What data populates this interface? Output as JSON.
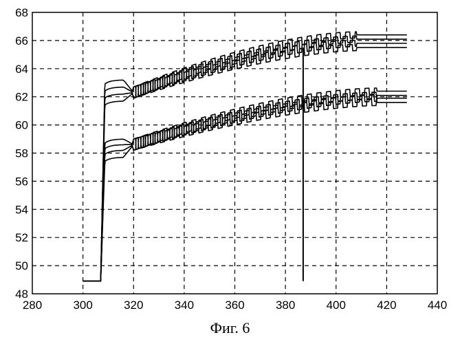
{
  "figure": {
    "caption": "Фиг. 6"
  },
  "chart_data": {
    "type": "line",
    "title": "",
    "xlabel": "",
    "ylabel": "",
    "xlim": [
      280,
      440
    ],
    "ylim": [
      48,
      68
    ],
    "xticks": [
      280,
      300,
      320,
      340,
      360,
      380,
      400,
      420,
      440
    ],
    "yticks": [
      48,
      50,
      52,
      54,
      56,
      58,
      60,
      62,
      64,
      66,
      68
    ],
    "grid": true,
    "legend": "none",
    "line_color": "#000000",
    "step": {
      "x_start": 300,
      "x_step": 307,
      "y_base": 48.9,
      "x_end": 428
    },
    "upper_group": {
      "plateau_y": [
        63.2,
        62.7,
        62.2,
        61.7
      ],
      "ramp_x_start": 320,
      "ramp_y_start": 62.3,
      "final_y": [
        66.4,
        66.1,
        65.8,
        65.5
      ],
      "oscillation_amplitude": 0.8,
      "oscillation_period": 3.8,
      "osc_end_x": 408
    },
    "lower_group": {
      "plateau_y": [
        59.0,
        58.6,
        58.2,
        57.7
      ],
      "ramp_x_start": 320,
      "ramp_y_start": 58.6,
      "final_y": [
        62.4,
        62.1,
        61.9,
        61.6
      ],
      "oscillation_amplitude": 0.8,
      "oscillation_period": 3.8,
      "osc_end_x": 416
    },
    "marker": {
      "x": 387,
      "y_from": 48.9,
      "y_to": 65.4
    }
  }
}
